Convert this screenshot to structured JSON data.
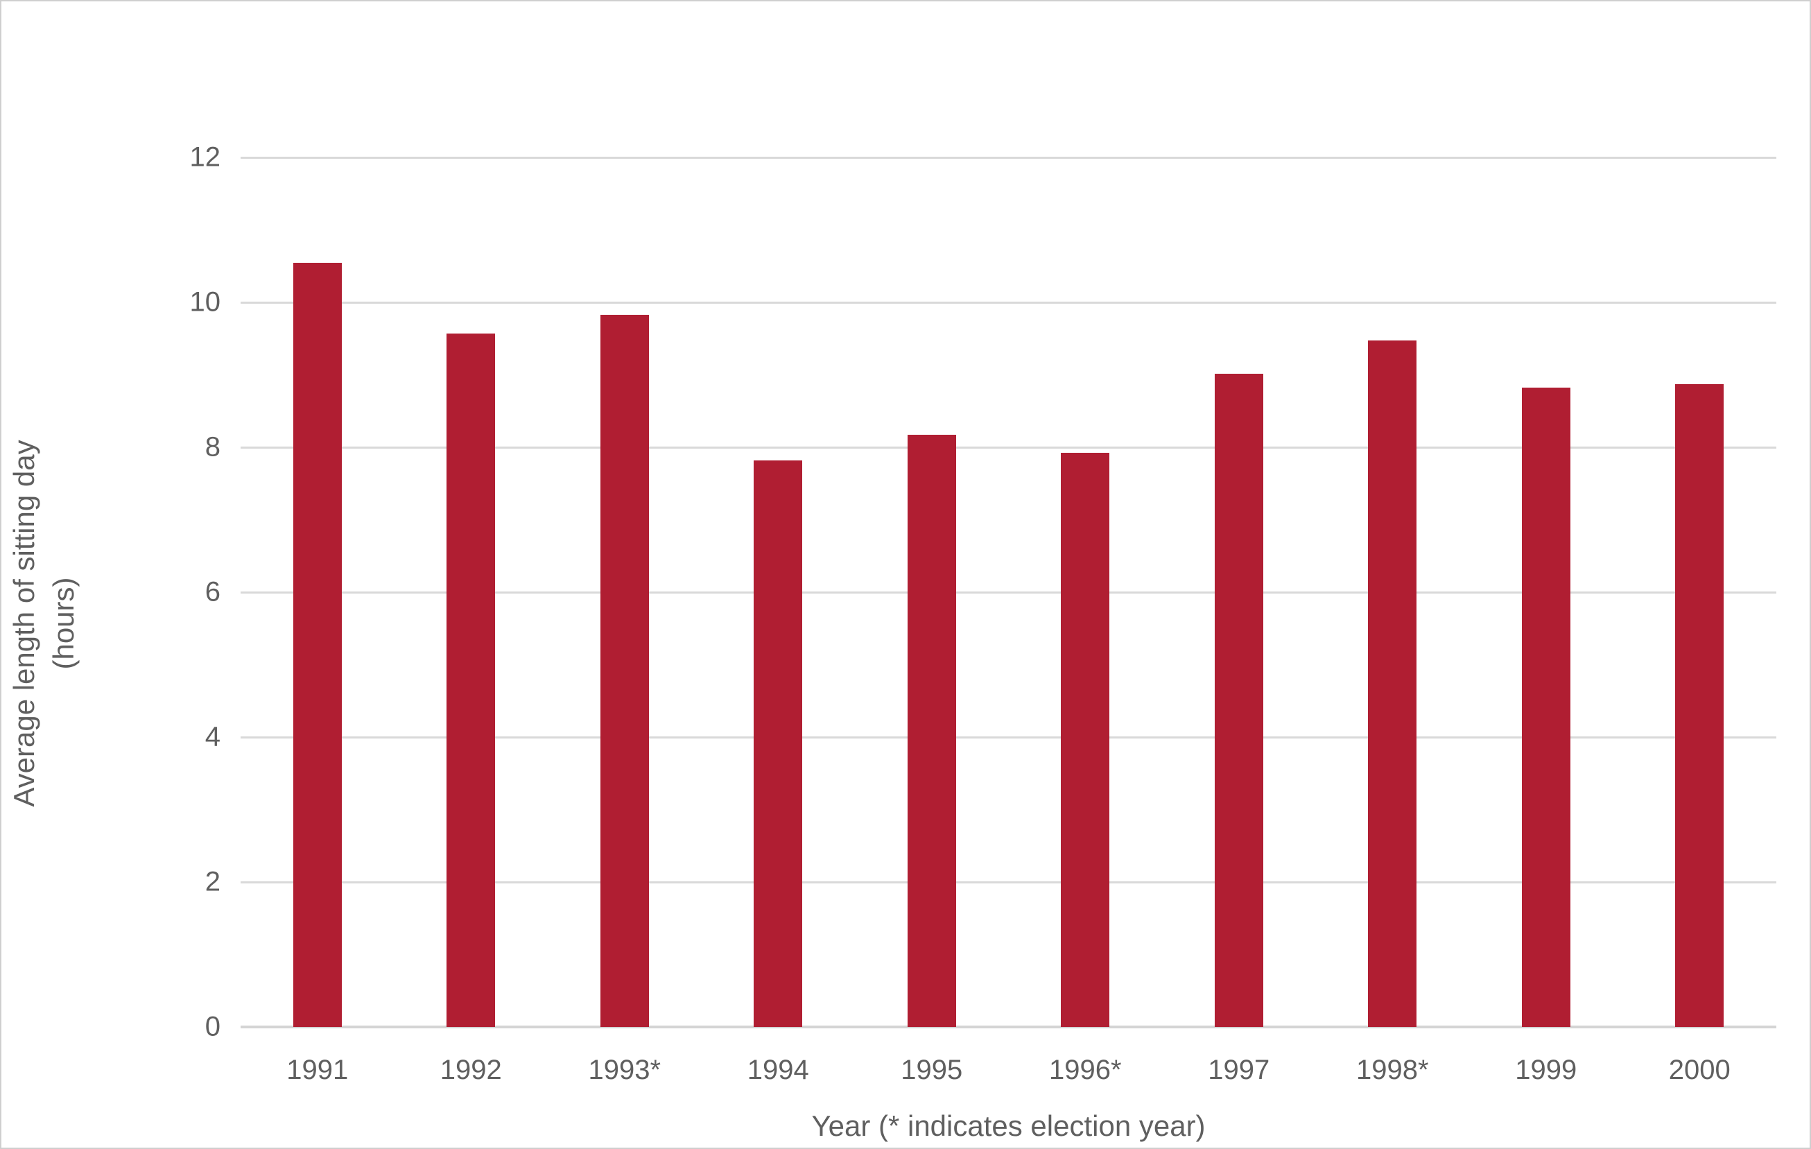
{
  "chart_data": {
    "type": "bar",
    "categories": [
      "1991",
      "1992",
      "1993*",
      "1994",
      "1995",
      "1996*",
      "1997",
      "1998*",
      "1999",
      "2000"
    ],
    "values": [
      10.55,
      9.57,
      9.83,
      7.82,
      8.17,
      7.92,
      9.01,
      9.47,
      8.82,
      8.87
    ],
    "xlabel": "Year (* indicates election year)",
    "ylabel_line1": "Average length of sitting day",
    "ylabel_line2": "(hours)",
    "ylim": [
      0,
      12
    ],
    "yticks": [
      0,
      2,
      4,
      6,
      8,
      10,
      12
    ],
    "grid": "horizontal",
    "legend": "none",
    "bar_color": "#B01E32"
  },
  "colors": {
    "bar": "#B01E32",
    "text": "#5f5f5f",
    "gridline": "#d9d9d9",
    "frame_border": "#cfcfcf",
    "background": "#ffffff"
  }
}
